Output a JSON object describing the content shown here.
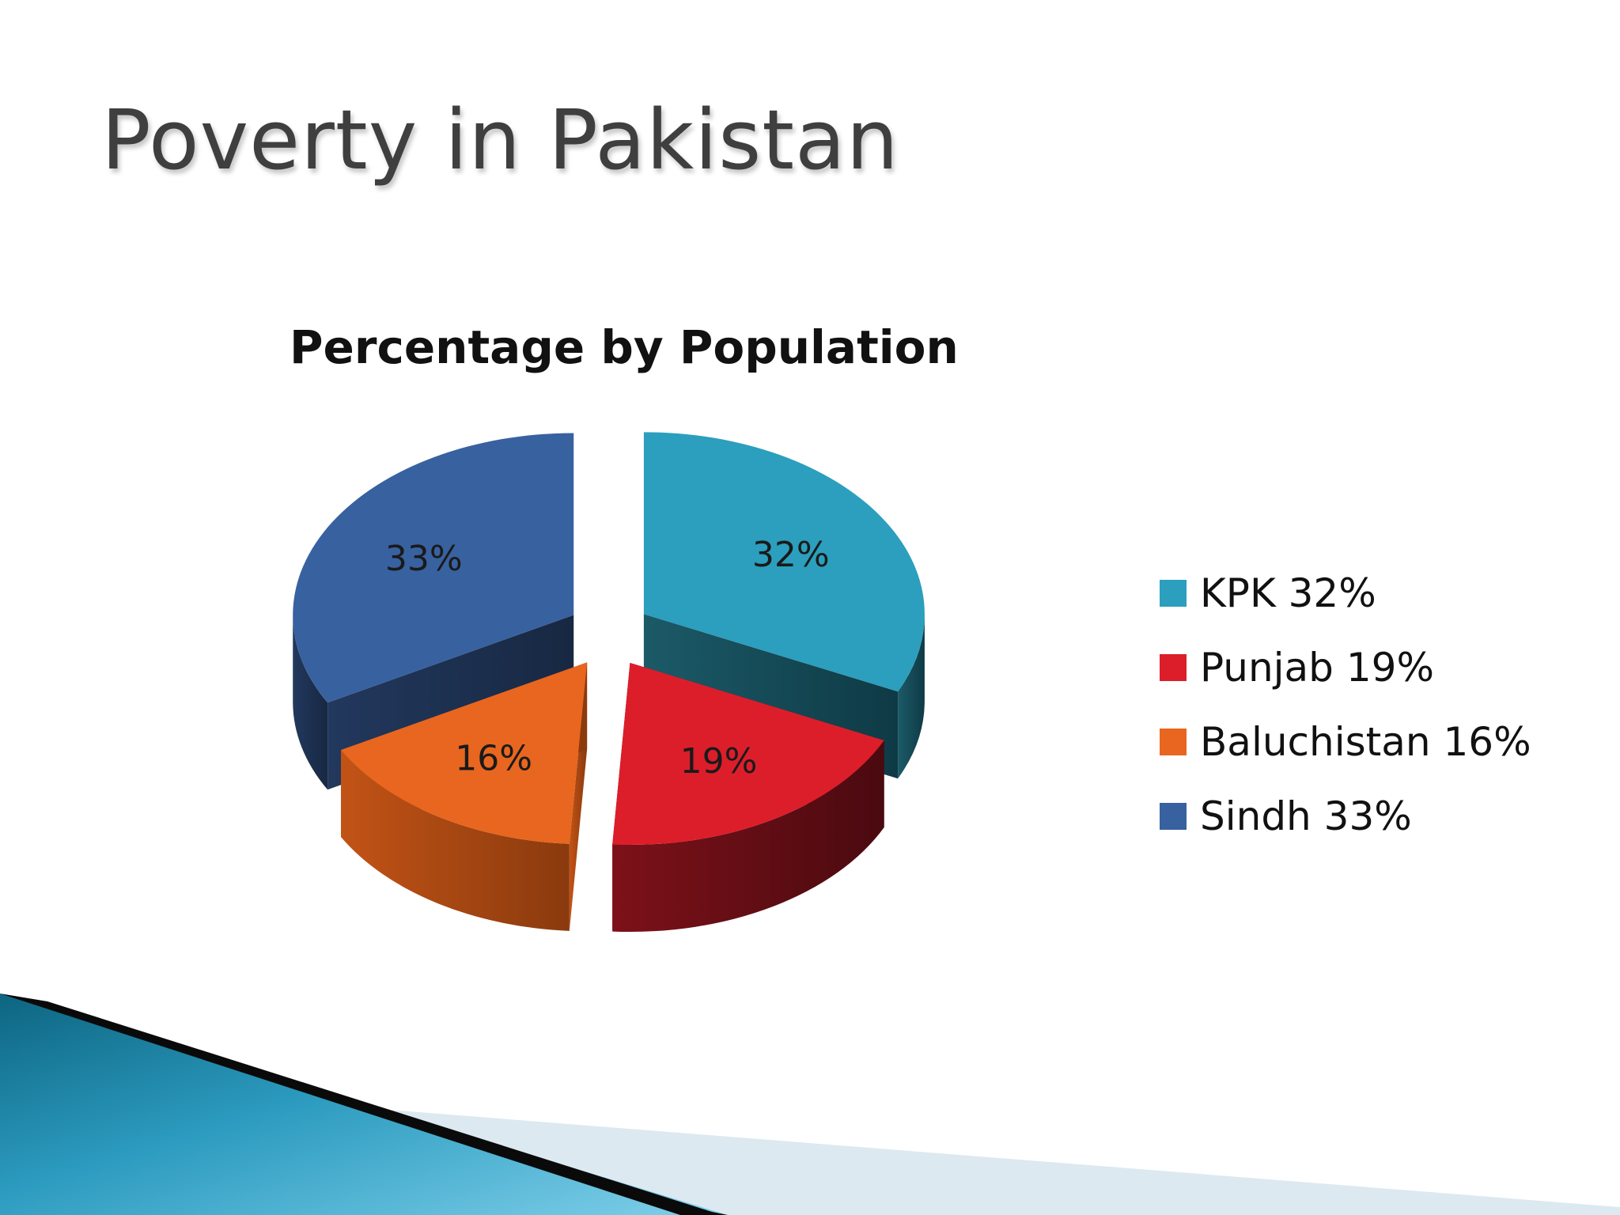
{
  "slide": {
    "title": "Poverty in Pakistan"
  },
  "chart_data": {
    "type": "pie",
    "title": "Percentage by Population",
    "labels": [
      "KPK",
      "Punjab",
      "Baluchistan",
      "Sindh"
    ],
    "values": [
      32,
      19,
      16,
      33
    ],
    "data_labels": [
      "32%",
      "19%",
      "16%",
      "33%"
    ],
    "legend": [
      "KPK 32%",
      "Punjab 19%",
      "Baluchistan 16%",
      "Sindh 33%"
    ],
    "legend_position": "right",
    "colors": [
      "#2b9fbd",
      "#dc1e2b",
      "#e8661f",
      "#3861a0"
    ],
    "exploded": true,
    "style": "3d"
  },
  "theme": {
    "accent_dark": "#0f6f8c",
    "accent_light": "#62c2de"
  }
}
